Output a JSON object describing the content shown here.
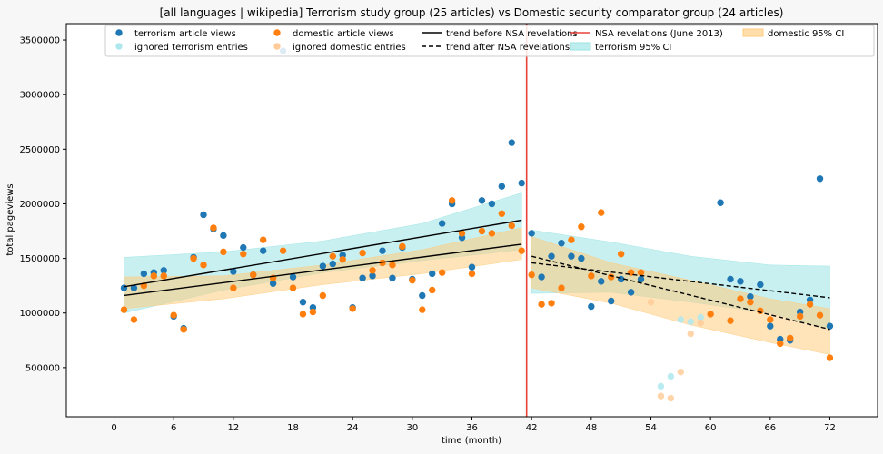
{
  "chart_data": {
    "type": "scatter",
    "title": "[all languages | wikipedia] Terrorism study group (25 articles) vs Domestic security comparator group (24 articles)",
    "xlabel": "time (month)",
    "ylabel": "total pageviews",
    "xlim": [
      -4.8,
      76.8
    ],
    "ylim": [
      50000,
      3650000
    ],
    "xticks": [
      0,
      6,
      12,
      18,
      24,
      30,
      36,
      42,
      48,
      54,
      60,
      66,
      72
    ],
    "yticks": [
      500000,
      1000000,
      1500000,
      2000000,
      2500000,
      3000000,
      3500000
    ],
    "grid": false,
    "legend_position": "top",
    "colors": {
      "terrorism": "#1f77b4",
      "domestic": "#ff7f0e",
      "ignored_terrorism": "#aee8ee",
      "ignored_domestic": "#ffcc99",
      "event_line": "#e8423a",
      "terrorism_ci": "#9be4e4",
      "domestic_ci": "#ffcc80"
    },
    "event_x": 41.5,
    "series": [
      {
        "name": "terrorism article views",
        "key": "terrorism",
        "points": [
          [
            1,
            1230000
          ],
          [
            2,
            1230000
          ],
          [
            3,
            1360000
          ],
          [
            4,
            1370000
          ],
          [
            5,
            1390000
          ],
          [
            6,
            970000
          ],
          [
            7,
            860000
          ],
          [
            8,
            1510000
          ],
          [
            9,
            1900000
          ],
          [
            10,
            1770000
          ],
          [
            11,
            1710000
          ],
          [
            12,
            1380000
          ],
          [
            13,
            1600000
          ],
          [
            14,
            1350000
          ],
          [
            15,
            1570000
          ],
          [
            16,
            1270000
          ],
          [
            17,
            3400000
          ],
          [
            18,
            1330000
          ],
          [
            19,
            1100000
          ],
          [
            20,
            1050000
          ],
          [
            21,
            1430000
          ],
          [
            22,
            1450000
          ],
          [
            23,
            1530000
          ],
          [
            24,
            1050000
          ],
          [
            25,
            1320000
          ],
          [
            26,
            1340000
          ],
          [
            27,
            1570000
          ],
          [
            28,
            1320000
          ],
          [
            29,
            1600000
          ],
          [
            30,
            1310000
          ],
          [
            31,
            1160000
          ],
          [
            32,
            1360000
          ],
          [
            33,
            1820000
          ],
          [
            34,
            2000000
          ],
          [
            35,
            1690000
          ],
          [
            36,
            1420000
          ],
          [
            37,
            2030000
          ],
          [
            38,
            2000000
          ],
          [
            39,
            2160000
          ],
          [
            40,
            2560000
          ],
          [
            41,
            2190000
          ],
          [
            42,
            1730000
          ],
          [
            43,
            1330000
          ],
          [
            44,
            1520000
          ],
          [
            45,
            1640000
          ],
          [
            46,
            1520000
          ],
          [
            47,
            1500000
          ],
          [
            48,
            1060000
          ],
          [
            49,
            1290000
          ],
          [
            50,
            1110000
          ],
          [
            51,
            1310000
          ],
          [
            52,
            1190000
          ],
          [
            53,
            1310000
          ],
          [
            61,
            2010000
          ],
          [
            62,
            1310000
          ],
          [
            63,
            1290000
          ],
          [
            64,
            1150000
          ],
          [
            65,
            1260000
          ],
          [
            66,
            880000
          ],
          [
            67,
            760000
          ],
          [
            68,
            750000
          ],
          [
            69,
            1010000
          ],
          [
            70,
            1120000
          ],
          [
            71,
            2230000
          ],
          [
            72,
            880000
          ]
        ]
      },
      {
        "name": "ignored terrorism entries",
        "key": "ignored_terrorism",
        "points": [
          [
            55,
            330000
          ],
          [
            56,
            420000
          ],
          [
            57,
            940000
          ],
          [
            58,
            920000
          ],
          [
            59,
            960000
          ]
        ]
      },
      {
        "name": "domestic article views",
        "key": "domestic",
        "points": [
          [
            1,
            1030000
          ],
          [
            2,
            940000
          ],
          [
            3,
            1250000
          ],
          [
            4,
            1340000
          ],
          [
            5,
            1340000
          ],
          [
            6,
            980000
          ],
          [
            7,
            850000
          ],
          [
            8,
            1500000
          ],
          [
            9,
            1440000
          ],
          [
            10,
            1780000
          ],
          [
            11,
            1560000
          ],
          [
            12,
            1230000
          ],
          [
            13,
            1540000
          ],
          [
            14,
            1350000
          ],
          [
            15,
            1670000
          ],
          [
            16,
            1320000
          ],
          [
            17,
            1570000
          ],
          [
            18,
            1230000
          ],
          [
            19,
            990000
          ],
          [
            20,
            1010000
          ],
          [
            21,
            1160000
          ],
          [
            22,
            1520000
          ],
          [
            23,
            1490000
          ],
          [
            24,
            1040000
          ],
          [
            25,
            1550000
          ],
          [
            26,
            1390000
          ],
          [
            27,
            1460000
          ],
          [
            28,
            1440000
          ],
          [
            29,
            1610000
          ],
          [
            30,
            1300000
          ],
          [
            31,
            1030000
          ],
          [
            32,
            1210000
          ],
          [
            33,
            1370000
          ],
          [
            34,
            2030000
          ],
          [
            35,
            1730000
          ],
          [
            36,
            1360000
          ],
          [
            37,
            1750000
          ],
          [
            38,
            1730000
          ],
          [
            39,
            1910000
          ],
          [
            40,
            1800000
          ],
          [
            41,
            1570000
          ],
          [
            42,
            1350000
          ],
          [
            43,
            1080000
          ],
          [
            44,
            1090000
          ],
          [
            45,
            1230000
          ],
          [
            46,
            1670000
          ],
          [
            47,
            1790000
          ],
          [
            48,
            1340000
          ],
          [
            49,
            1920000
          ],
          [
            50,
            1330000
          ],
          [
            51,
            1540000
          ],
          [
            52,
            1370000
          ],
          [
            53,
            1370000
          ],
          [
            60,
            990000
          ],
          [
            62,
            930000
          ],
          [
            63,
            1130000
          ],
          [
            64,
            1100000
          ],
          [
            65,
            1020000
          ],
          [
            66,
            940000
          ],
          [
            67,
            720000
          ],
          [
            68,
            770000
          ],
          [
            69,
            970000
          ],
          [
            70,
            1080000
          ],
          [
            71,
            980000
          ],
          [
            72,
            590000
          ]
        ]
      },
      {
        "name": "ignored domestic entries",
        "key": "ignored_domestic",
        "points": [
          [
            54,
            1100000
          ],
          [
            55,
            240000
          ],
          [
            56,
            220000
          ],
          [
            57,
            460000
          ],
          [
            58,
            810000
          ],
          [
            59,
            910000
          ]
        ]
      }
    ],
    "trends": [
      {
        "name": "trend before NSA revelations",
        "style": "solid",
        "group": "terrorism",
        "x": [
          1,
          41
        ],
        "y": [
          1240000,
          1850000
        ]
      },
      {
        "name": "trend before NSA revelations",
        "style": "solid",
        "group": "domestic",
        "x": [
          1,
          41
        ],
        "y": [
          1160000,
          1630000
        ]
      },
      {
        "name": "trend after NSA revelations",
        "style": "dashed",
        "group": "terrorism",
        "x": [
          42,
          72
        ],
        "y": [
          1460000,
          1140000
        ]
      },
      {
        "name": "trend after NSA revelations",
        "style": "dashed",
        "group": "domestic",
        "x": [
          42,
          72
        ],
        "y": [
          1520000,
          850000
        ]
      }
    ],
    "confidence_bands": [
      {
        "name": "terrorism 95% CI",
        "key": "terrorism_ci",
        "x": [
          1,
          11,
          21,
          31,
          41
        ],
        "lower": [
          1000000,
          1210000,
          1370000,
          1480000,
          1580000
        ],
        "upper": [
          1510000,
          1560000,
          1660000,
          1820000,
          2100000
        ]
      },
      {
        "name": "terrorism 95% CI",
        "key": "terrorism_ci",
        "x": [
          42,
          50,
          58,
          66,
          72
        ],
        "lower": [
          1180000,
          1190000,
          1100000,
          1000000,
          850000
        ],
        "upper": [
          1760000,
          1650000,
          1520000,
          1440000,
          1430000
        ]
      },
      {
        "name": "domestic 95% CI",
        "key": "domestic_ci",
        "x": [
          1,
          11,
          21,
          31,
          41
        ],
        "lower": [
          1040000,
          1130000,
          1260000,
          1360000,
          1490000
        ],
        "upper": [
          1330000,
          1340000,
          1440000,
          1580000,
          1780000
        ]
      },
      {
        "name": "domestic 95% CI",
        "key": "domestic_ci",
        "x": [
          42,
          50,
          58,
          66,
          72
        ],
        "lower": [
          1230000,
          1090000,
          890000,
          730000,
          620000
        ],
        "upper": [
          1700000,
          1460000,
          1300000,
          1130000,
          1040000
        ]
      }
    ],
    "legend": [
      {
        "label": "terrorism article views",
        "kind": "marker",
        "key": "terrorism"
      },
      {
        "label": "domestic article views",
        "kind": "marker",
        "key": "domestic"
      },
      {
        "label": "trend before NSA revelations",
        "kind": "line",
        "dash": false
      },
      {
        "label": "NSA revelations (June 2013)",
        "kind": "line",
        "key": "event_line"
      },
      {
        "label": "domestic 95% CI",
        "kind": "patch",
        "key": "domestic_ci"
      },
      {
        "label": "ignored terrorism entries",
        "kind": "marker",
        "key": "ignored_terrorism"
      },
      {
        "label": "ignored domestic entries",
        "kind": "marker",
        "key": "ignored_domestic"
      },
      {
        "label": "trend after NSA revelations",
        "kind": "line",
        "dash": true
      },
      {
        "label": "terrorism 95% CI",
        "kind": "patch",
        "key": "terrorism_ci"
      }
    ]
  }
}
